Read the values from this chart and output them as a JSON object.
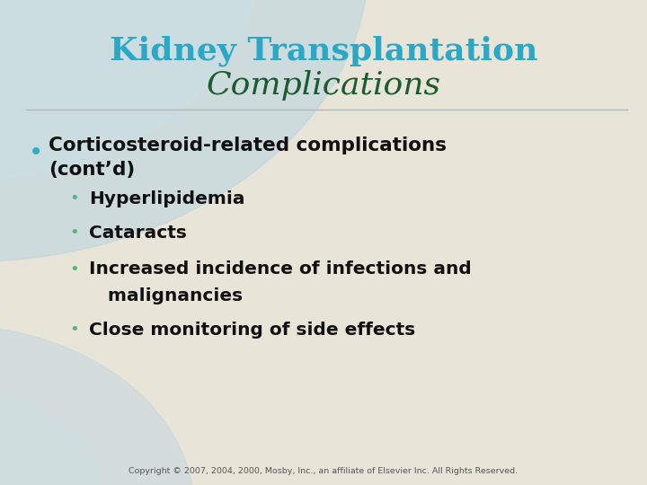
{
  "title_line1": "Kidney Transplantation",
  "title_line2": "Complications",
  "title_color1": "#2aa8c8",
  "title_color2": "#1a5c30",
  "line_color": "#b0b8b8",
  "bullet_color_main": "#2ab0c0",
  "bullet_color_sub": "#50b878",
  "main_bullet_text_line1": "Corticosteroid-related complications",
  "main_bullet_text_line2": "(cont’d)",
  "sub_texts": [
    "Hyperlipidemia",
    "Cataracts",
    "Increased incidence of infections and",
    "malignancies",
    "Close monitoring of side effects"
  ],
  "text_color": "#111111",
  "copyright": "Copyright © 2007, 2004, 2000, Mosby, Inc., an affiliate of Elsevier Inc. All Rights Reserved.",
  "bg_main": "#e8e4d8",
  "bg_arc_outer": "#b8d4e0",
  "bg_arc_inner": "#cce0ea",
  "bg_arc_bottom": "#b8ccd4"
}
